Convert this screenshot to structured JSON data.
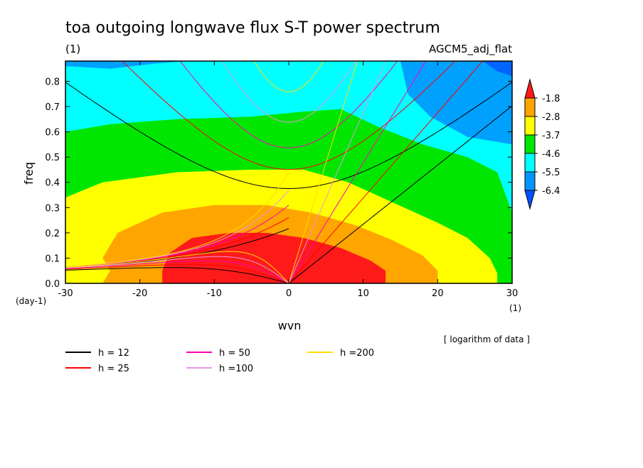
{
  "chart_data": {
    "type": "heatmap",
    "title": "toa outgoing longwave flux S-T power spectrum",
    "subtitle_left": "(1)",
    "subtitle_right": "AGCM5_adj_flat",
    "note": "[ logarithm of data ]",
    "xlabel": "wvn",
    "ylabel": "freq",
    "x_unit": "(1)",
    "y_unit": "(day-1)",
    "xlim": [
      -30,
      30
    ],
    "ylim": [
      0,
      0.88
    ],
    "x_ticks": [
      -30,
      -20,
      -10,
      0,
      10,
      20,
      30
    ],
    "x_tick_labels": [
      "-30",
      "-20",
      "-10",
      "0",
      "10",
      "20",
      "30"
    ],
    "y_ticks": [
      0.0,
      0.1,
      0.2,
      0.3,
      0.4,
      0.5,
      0.6,
      0.7,
      0.8
    ],
    "y_tick_labels": [
      "0.0",
      "0.1",
      "0.2",
      "0.3",
      "0.4",
      "0.5",
      "0.6",
      "0.7",
      "0.8"
    ],
    "colorbar": {
      "levels": [
        "-1.8",
        "-2.8",
        "-3.7",
        "-4.6",
        "-5.5",
        "-6.4"
      ],
      "colors": [
        "#ff1a1a",
        "#ffa500",
        "#ffff00",
        "#00e600",
        "#00ffff",
        "#0096ff",
        "#0050ff"
      ]
    },
    "dispersion_curves": [
      {
        "label": "h = 12",
        "h": 12,
        "color": "#000000"
      },
      {
        "label": "h = 25",
        "h": 25,
        "color": "#ff0000"
      },
      {
        "label": "h = 50",
        "h": 50,
        "color": "#ff00b4"
      },
      {
        "label": "h =100",
        "h": 100,
        "color": "#e696e6"
      },
      {
        "label": "h =200",
        "h": 200,
        "color": "#ffdc00"
      }
    ],
    "fill_bands_note": "filled contour regions, estimated boundaries in data units",
    "fills": {
      "bg_blue": "#0064ff",
      "cyan": "#00ffff",
      "green": "#00e600",
      "yellow": "#ffff00",
      "orange": "#ffa500",
      "red": "#ff1a1a",
      "lightblue": "#00a0ff"
    }
  }
}
